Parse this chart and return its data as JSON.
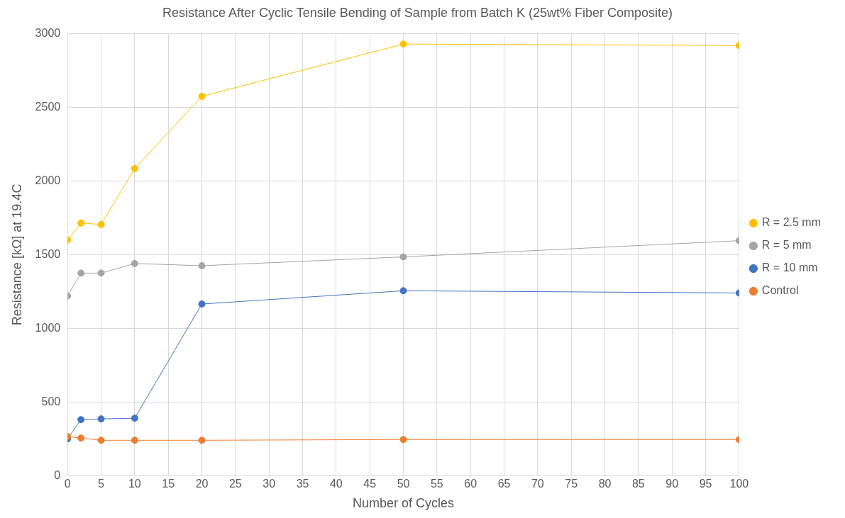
{
  "chart_data": {
    "type": "line",
    "title": "Resistance After Cyclic Tensile Bending of Sample from Batch K (25wt% Fiber Composite)",
    "xlabel": "Number of Cycles",
    "ylabel": "Resistance [kΩ] at 19.4C",
    "x": [
      0,
      2,
      5,
      10,
      20,
      50,
      100
    ],
    "series": [
      {
        "name": "R = 2.5 mm",
        "color": "#ffc000",
        "values": [
          1600,
          1715,
          1705,
          2085,
          2575,
          2930,
          2920
        ]
      },
      {
        "name": "R = 5 mm",
        "color": "#a5a5a5",
        "values": [
          1220,
          1375,
          1375,
          1440,
          1425,
          1485,
          1595
        ]
      },
      {
        "name": "R = 10 mm",
        "color": "#4472c4",
        "values": [
          250,
          380,
          385,
          390,
          1165,
          1255,
          1240
        ]
      },
      {
        "name": "Control",
        "color": "#ed7d31",
        "values": [
          265,
          255,
          240,
          240,
          240,
          245,
          245
        ]
      }
    ],
    "xlim": [
      0,
      100
    ],
    "xticks": [
      0,
      5,
      10,
      15,
      20,
      25,
      30,
      35,
      40,
      45,
      50,
      55,
      60,
      65,
      70,
      75,
      80,
      85,
      90,
      95,
      100
    ],
    "ylim": [
      0,
      3000
    ],
    "yticks": [
      0,
      500,
      1000,
      1500,
      2000,
      2500,
      3000
    ],
    "grid": true,
    "legend": "right",
    "marker": "circle",
    "line_style": "solid"
  }
}
